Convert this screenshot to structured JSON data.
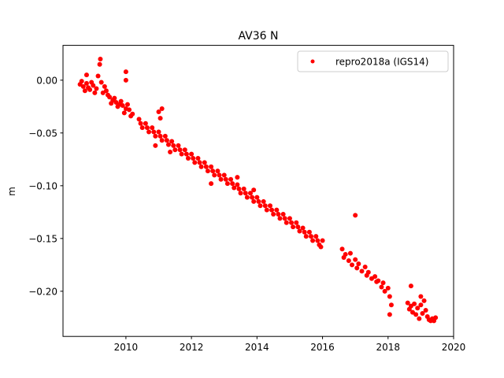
{
  "chart_data": {
    "type": "scatter",
    "title": "AV36 N",
    "xlabel": "",
    "ylabel": "m",
    "xlim": [
      2008.08,
      2020
    ],
    "ylim": [
      -0.2428,
      0.033
    ],
    "xticks": [
      2010,
      2012,
      2014,
      2016,
      2018,
      2020
    ],
    "xtick_labels": [
      "2010",
      "2012",
      "2014",
      "2016",
      "2018",
      "2020"
    ],
    "yticks": [
      0.0,
      -0.05,
      -0.1,
      -0.15,
      -0.2
    ],
    "ytick_labels": [
      "0.00",
      "−0.05",
      "−0.10",
      "−0.15",
      "−0.20"
    ],
    "grid": false,
    "legend_position": "top-right",
    "series": [
      {
        "name": "repro2018a (IGS14)",
        "color": "#ff0000",
        "marker": "dot",
        "points": [
          [
            2008.6,
            -0.004
          ],
          [
            2008.7,
            -0.006
          ],
          [
            2008.8,
            -0.003
          ],
          [
            2008.9,
            -0.009
          ],
          [
            2009.0,
            -0.005
          ],
          [
            2009.1,
            -0.008
          ],
          [
            2009.2,
            0.015
          ],
          [
            2009.3,
            -0.012
          ],
          [
            2009.4,
            -0.01
          ],
          [
            2009.5,
            -0.016
          ],
          [
            2009.6,
            -0.019
          ],
          [
            2009.7,
            -0.021
          ],
          [
            2009.8,
            -0.023
          ],
          [
            2009.9,
            -0.024
          ],
          [
            2010.0,
            -0.027
          ],
          [
            2010.1,
            -0.028
          ],
          [
            2010.2,
            -0.032
          ],
          [
            2008.65,
            -0.001
          ],
          [
            2008.75,
            -0.01
          ],
          [
            2008.85,
            -0.007
          ],
          [
            2008.95,
            -0.002
          ],
          [
            2009.05,
            -0.012
          ],
          [
            2009.15,
            0.004
          ],
          [
            2009.22,
            0.02
          ],
          [
            2009.25,
            -0.002
          ],
          [
            2009.35,
            -0.006
          ],
          [
            2009.45,
            -0.014
          ],
          [
            2009.55,
            -0.022
          ],
          [
            2009.65,
            -0.017
          ],
          [
            2009.75,
            -0.025
          ],
          [
            2009.85,
            -0.02
          ],
          [
            2009.95,
            -0.031
          ],
          [
            2010.05,
            -0.023
          ],
          [
            2010.15,
            -0.034
          ],
          [
            2010.0,
            0.0
          ],
          [
            2010.0,
            0.008
          ],
          [
            2008.8,
            0.005
          ],
          [
            2010.4,
            -0.037
          ],
          [
            2010.5,
            -0.045
          ],
          [
            2010.45,
            -0.041
          ],
          [
            2010.6,
            -0.041
          ],
          [
            2010.7,
            -0.049
          ],
          [
            2010.65,
            -0.045
          ],
          [
            2010.8,
            -0.045
          ],
          [
            2010.9,
            -0.053
          ],
          [
            2010.85,
            -0.049
          ],
          [
            2011.0,
            -0.049
          ],
          [
            2011.1,
            -0.057
          ],
          [
            2011.05,
            -0.053
          ],
          [
            2011.2,
            -0.053
          ],
          [
            2011.3,
            -0.061
          ],
          [
            2011.25,
            -0.057
          ],
          [
            2011.4,
            -0.058
          ],
          [
            2011.5,
            -0.066
          ],
          [
            2011.45,
            -0.062
          ],
          [
            2011.6,
            -0.062
          ],
          [
            2011.7,
            -0.07
          ],
          [
            2011.65,
            -0.066
          ],
          [
            2011.8,
            -0.066
          ],
          [
            2011.9,
            -0.074
          ],
          [
            2011.85,
            -0.07
          ],
          [
            2012.0,
            -0.07
          ],
          [
            2012.1,
            -0.078
          ],
          [
            2012.05,
            -0.074
          ],
          [
            2012.2,
            -0.074
          ],
          [
            2012.3,
            -0.082
          ],
          [
            2012.25,
            -0.078
          ],
          [
            2012.4,
            -0.078
          ],
          [
            2012.5,
            -0.086
          ],
          [
            2012.45,
            -0.082
          ],
          [
            2012.6,
            -0.082
          ],
          [
            2012.7,
            -0.09
          ],
          [
            2012.65,
            -0.086
          ],
          [
            2012.8,
            -0.086
          ],
          [
            2012.9,
            -0.094
          ],
          [
            2012.85,
            -0.09
          ],
          [
            2013.0,
            -0.09
          ],
          [
            2013.1,
            -0.098
          ],
          [
            2013.05,
            -0.094
          ],
          [
            2013.2,
            -0.094
          ],
          [
            2013.3,
            -0.102
          ],
          [
            2013.25,
            -0.098
          ],
          [
            2013.4,
            -0.099
          ],
          [
            2013.5,
            -0.107
          ],
          [
            2013.45,
            -0.103
          ],
          [
            2013.6,
            -0.103
          ],
          [
            2013.7,
            -0.111
          ],
          [
            2013.65,
            -0.107
          ],
          [
            2013.8,
            -0.107
          ],
          [
            2013.9,
            -0.115
          ],
          [
            2013.85,
            -0.111
          ],
          [
            2014.0,
            -0.111
          ],
          [
            2014.1,
            -0.119
          ],
          [
            2014.05,
            -0.115
          ],
          [
            2014.2,
            -0.115
          ],
          [
            2014.3,
            -0.123
          ],
          [
            2014.25,
            -0.119
          ],
          [
            2014.4,
            -0.119
          ],
          [
            2014.5,
            -0.127
          ],
          [
            2014.45,
            -0.123
          ],
          [
            2014.6,
            -0.123
          ],
          [
            2014.7,
            -0.131
          ],
          [
            2014.65,
            -0.127
          ],
          [
            2014.8,
            -0.127
          ],
          [
            2014.9,
            -0.135
          ],
          [
            2014.85,
            -0.131
          ],
          [
            2015.0,
            -0.131
          ],
          [
            2015.1,
            -0.139
          ],
          [
            2015.05,
            -0.135
          ],
          [
            2015.2,
            -0.135
          ],
          [
            2015.3,
            -0.143
          ],
          [
            2015.25,
            -0.139
          ],
          [
            2015.4,
            -0.14
          ],
          [
            2015.5,
            -0.148
          ],
          [
            2015.45,
            -0.144
          ],
          [
            2015.6,
            -0.144
          ],
          [
            2015.7,
            -0.152
          ],
          [
            2015.65,
            -0.148
          ],
          [
            2015.8,
            -0.148
          ],
          [
            2015.9,
            -0.156
          ],
          [
            2015.85,
            -0.152
          ],
          [
            2016.0,
            -0.152
          ],
          [
            2015.95,
            -0.158
          ],
          [
            2011.0,
            -0.03
          ],
          [
            2011.1,
            -0.027
          ],
          [
            2011.05,
            -0.036
          ],
          [
            2011.35,
            -0.068
          ],
          [
            2012.6,
            -0.098
          ],
          [
            2013.4,
            -0.092
          ],
          [
            2013.9,
            -0.104
          ],
          [
            2010.9,
            -0.062
          ],
          [
            2016.6,
            -0.16
          ],
          [
            2016.65,
            -0.168
          ],
          [
            2016.7,
            -0.165
          ],
          [
            2016.8,
            -0.171
          ],
          [
            2016.85,
            -0.164
          ],
          [
            2016.9,
            -0.175
          ],
          [
            2017.0,
            -0.17
          ],
          [
            2017.05,
            -0.178
          ],
          [
            2017.1,
            -0.174
          ],
          [
            2017.2,
            -0.181
          ],
          [
            2017.3,
            -0.177
          ],
          [
            2017.35,
            -0.185
          ],
          [
            2017.4,
            -0.182
          ],
          [
            2017.5,
            -0.188
          ],
          [
            2017.6,
            -0.186
          ],
          [
            2017.65,
            -0.191
          ],
          [
            2017.7,
            -0.19
          ],
          [
            2017.8,
            -0.196
          ],
          [
            2017.85,
            -0.192
          ],
          [
            2017.9,
            -0.2
          ],
          [
            2018.0,
            -0.197
          ],
          [
            2018.05,
            -0.205
          ],
          [
            2018.1,
            -0.213
          ],
          [
            2018.05,
            -0.222
          ],
          [
            2017.0,
            -0.128
          ],
          [
            2018.6,
            -0.211
          ],
          [
            2018.65,
            -0.217
          ],
          [
            2018.7,
            -0.214
          ],
          [
            2018.75,
            -0.22
          ],
          [
            2018.8,
            -0.212
          ],
          [
            2018.85,
            -0.222
          ],
          [
            2018.9,
            -0.216
          ],
          [
            2018.95,
            -0.226
          ],
          [
            2019.0,
            -0.213
          ],
          [
            2019.05,
            -0.221
          ],
          [
            2019.1,
            -0.209
          ],
          [
            2019.15,
            -0.218
          ],
          [
            2019.2,
            -0.224
          ],
          [
            2019.25,
            -0.227
          ],
          [
            2019.3,
            -0.228
          ],
          [
            2019.35,
            -0.226
          ],
          [
            2019.4,
            -0.228
          ],
          [
            2019.45,
            -0.225
          ],
          [
            2018.7,
            -0.195
          ],
          [
            2019.0,
            -0.205
          ]
        ]
      }
    ]
  }
}
